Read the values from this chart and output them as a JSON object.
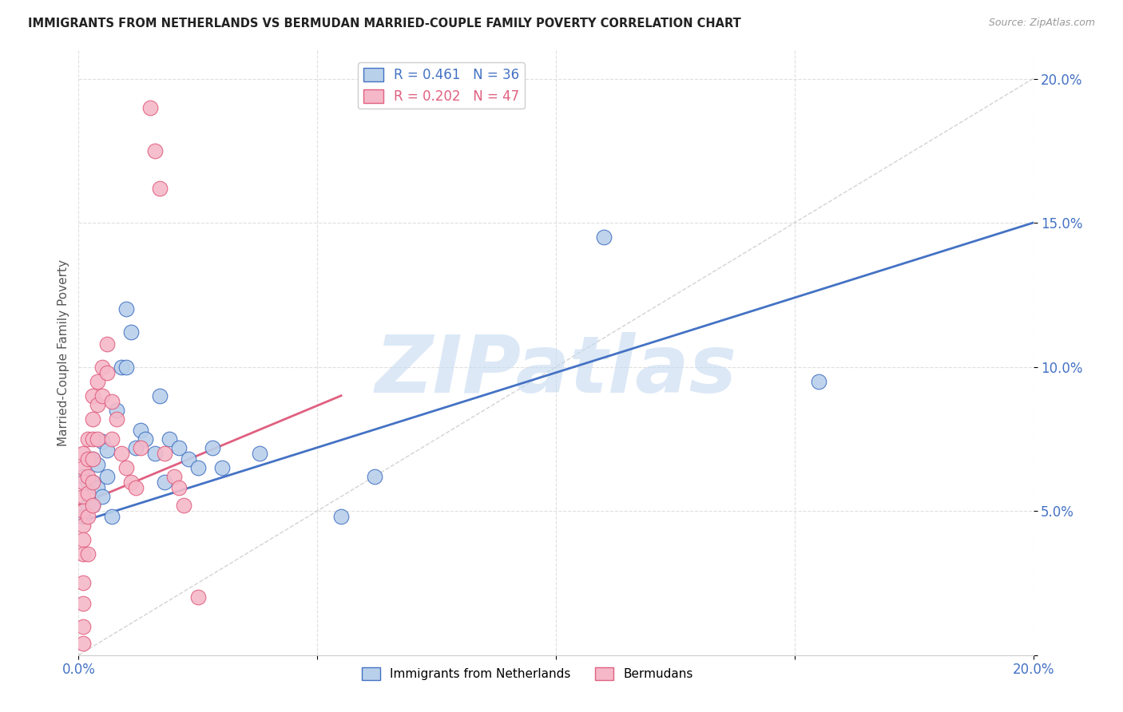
{
  "title": "IMMIGRANTS FROM NETHERLANDS VS BERMUDAN MARRIED-COUPLE FAMILY POVERTY CORRELATION CHART",
  "source": "Source: ZipAtlas.com",
  "ylabel": "Married-Couple Family Poverty",
  "xlim": [
    0,
    0.2
  ],
  "ylim": [
    0,
    0.21
  ],
  "xticks": [
    0.0,
    0.05,
    0.1,
    0.15,
    0.2
  ],
  "xticklabels_show": [
    "0.0%",
    "",
    "",
    "",
    "20.0%"
  ],
  "yticks": [
    0.0,
    0.05,
    0.1,
    0.15,
    0.2
  ],
  "yticklabels_show": [
    "",
    "5.0%",
    "10.0%",
    "15.0%",
    "20.0%"
  ],
  "blue_R": "0.461",
  "blue_N": "36",
  "pink_R": "0.202",
  "pink_N": "47",
  "blue_color": "#b8d0ea",
  "pink_color": "#f5b8c8",
  "blue_line_color": "#4472c4",
  "pink_line_color": "#e06080",
  "ref_line_color": "#c8c8c8",
  "blue_label": "Immigrants from Netherlands",
  "pink_label": "Bermudans",
  "blue_points_x": [
    0.001,
    0.001,
    0.002,
    0.002,
    0.003,
    0.003,
    0.003,
    0.004,
    0.004,
    0.005,
    0.005,
    0.006,
    0.006,
    0.007,
    0.008,
    0.009,
    0.01,
    0.01,
    0.011,
    0.012,
    0.013,
    0.014,
    0.016,
    0.017,
    0.018,
    0.019,
    0.021,
    0.023,
    0.025,
    0.028,
    0.03,
    0.038,
    0.055,
    0.062,
    0.11,
    0.155
  ],
  "blue_points_y": [
    0.062,
    0.048,
    0.06,
    0.052,
    0.068,
    0.06,
    0.052,
    0.066,
    0.058,
    0.074,
    0.055,
    0.071,
    0.062,
    0.048,
    0.085,
    0.1,
    0.12,
    0.1,
    0.112,
    0.072,
    0.078,
    0.075,
    0.07,
    0.09,
    0.06,
    0.075,
    0.072,
    0.068,
    0.065,
    0.072,
    0.065,
    0.07,
    0.048,
    0.062,
    0.145,
    0.095
  ],
  "pink_points_x": [
    0.001,
    0.001,
    0.001,
    0.001,
    0.001,
    0.001,
    0.001,
    0.001,
    0.001,
    0.001,
    0.001,
    0.001,
    0.002,
    0.002,
    0.002,
    0.002,
    0.002,
    0.002,
    0.003,
    0.003,
    0.003,
    0.003,
    0.003,
    0.003,
    0.004,
    0.004,
    0.004,
    0.005,
    0.005,
    0.006,
    0.006,
    0.007,
    0.007,
    0.008,
    0.009,
    0.01,
    0.011,
    0.012,
    0.013,
    0.015,
    0.016,
    0.017,
    0.018,
    0.02,
    0.021,
    0.022,
    0.025
  ],
  "pink_points_y": [
    0.07,
    0.065,
    0.06,
    0.055,
    0.05,
    0.045,
    0.04,
    0.035,
    0.025,
    0.018,
    0.01,
    0.004,
    0.075,
    0.068,
    0.062,
    0.056,
    0.048,
    0.035,
    0.09,
    0.082,
    0.075,
    0.068,
    0.06,
    0.052,
    0.095,
    0.087,
    0.075,
    0.1,
    0.09,
    0.108,
    0.098,
    0.088,
    0.075,
    0.082,
    0.07,
    0.065,
    0.06,
    0.058,
    0.072,
    0.19,
    0.175,
    0.162,
    0.07,
    0.062,
    0.058,
    0.052,
    0.02
  ],
  "blue_line_x": [
    0.0,
    0.2
  ],
  "blue_line_y": [
    0.046,
    0.15
  ],
  "pink_line_x": [
    0.0,
    0.055
  ],
  "pink_line_y": [
    0.052,
    0.09
  ],
  "ref_line_x": [
    0.0,
    0.21
  ],
  "ref_line_y": [
    0.0,
    0.21
  ],
  "watermark": "ZIPatlas",
  "watermark_color": "#c5daf0",
  "background_color": "#ffffff",
  "grid_color": "#d8d8d8"
}
